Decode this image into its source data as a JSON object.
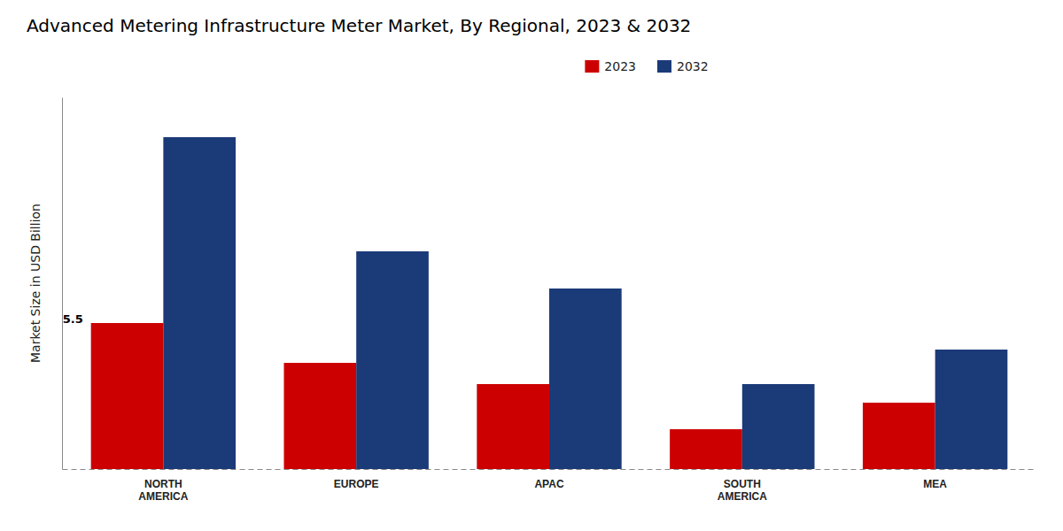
{
  "chart_data": {
    "type": "bar",
    "title": "Advanced Metering Infrastructure Meter Market, By Regional, 2023 & 2032",
    "ylabel": "Market Size in USD Billion",
    "categories": [
      "NORTH\nAMERICA",
      "EUROPE",
      "APAC",
      "SOUTH\nAMERICA",
      "MEA"
    ],
    "series": [
      {
        "name": "2023",
        "color": "#cc0000",
        "values": [
          5.5,
          4.0,
          3.2,
          1.5,
          2.5
        ]
      },
      {
        "name": "2032",
        "color": "#1b3a78",
        "values": [
          12.5,
          8.2,
          6.8,
          3.2,
          4.5
        ]
      }
    ],
    "ylim": [
      0,
      14
    ],
    "tick_labels": "x",
    "grid": false,
    "legend": "top",
    "annotations": [
      {
        "text": "5.5",
        "category": "NORTH\nAMERICA",
        "series": "2023",
        "y": 5.5
      }
    ]
  }
}
